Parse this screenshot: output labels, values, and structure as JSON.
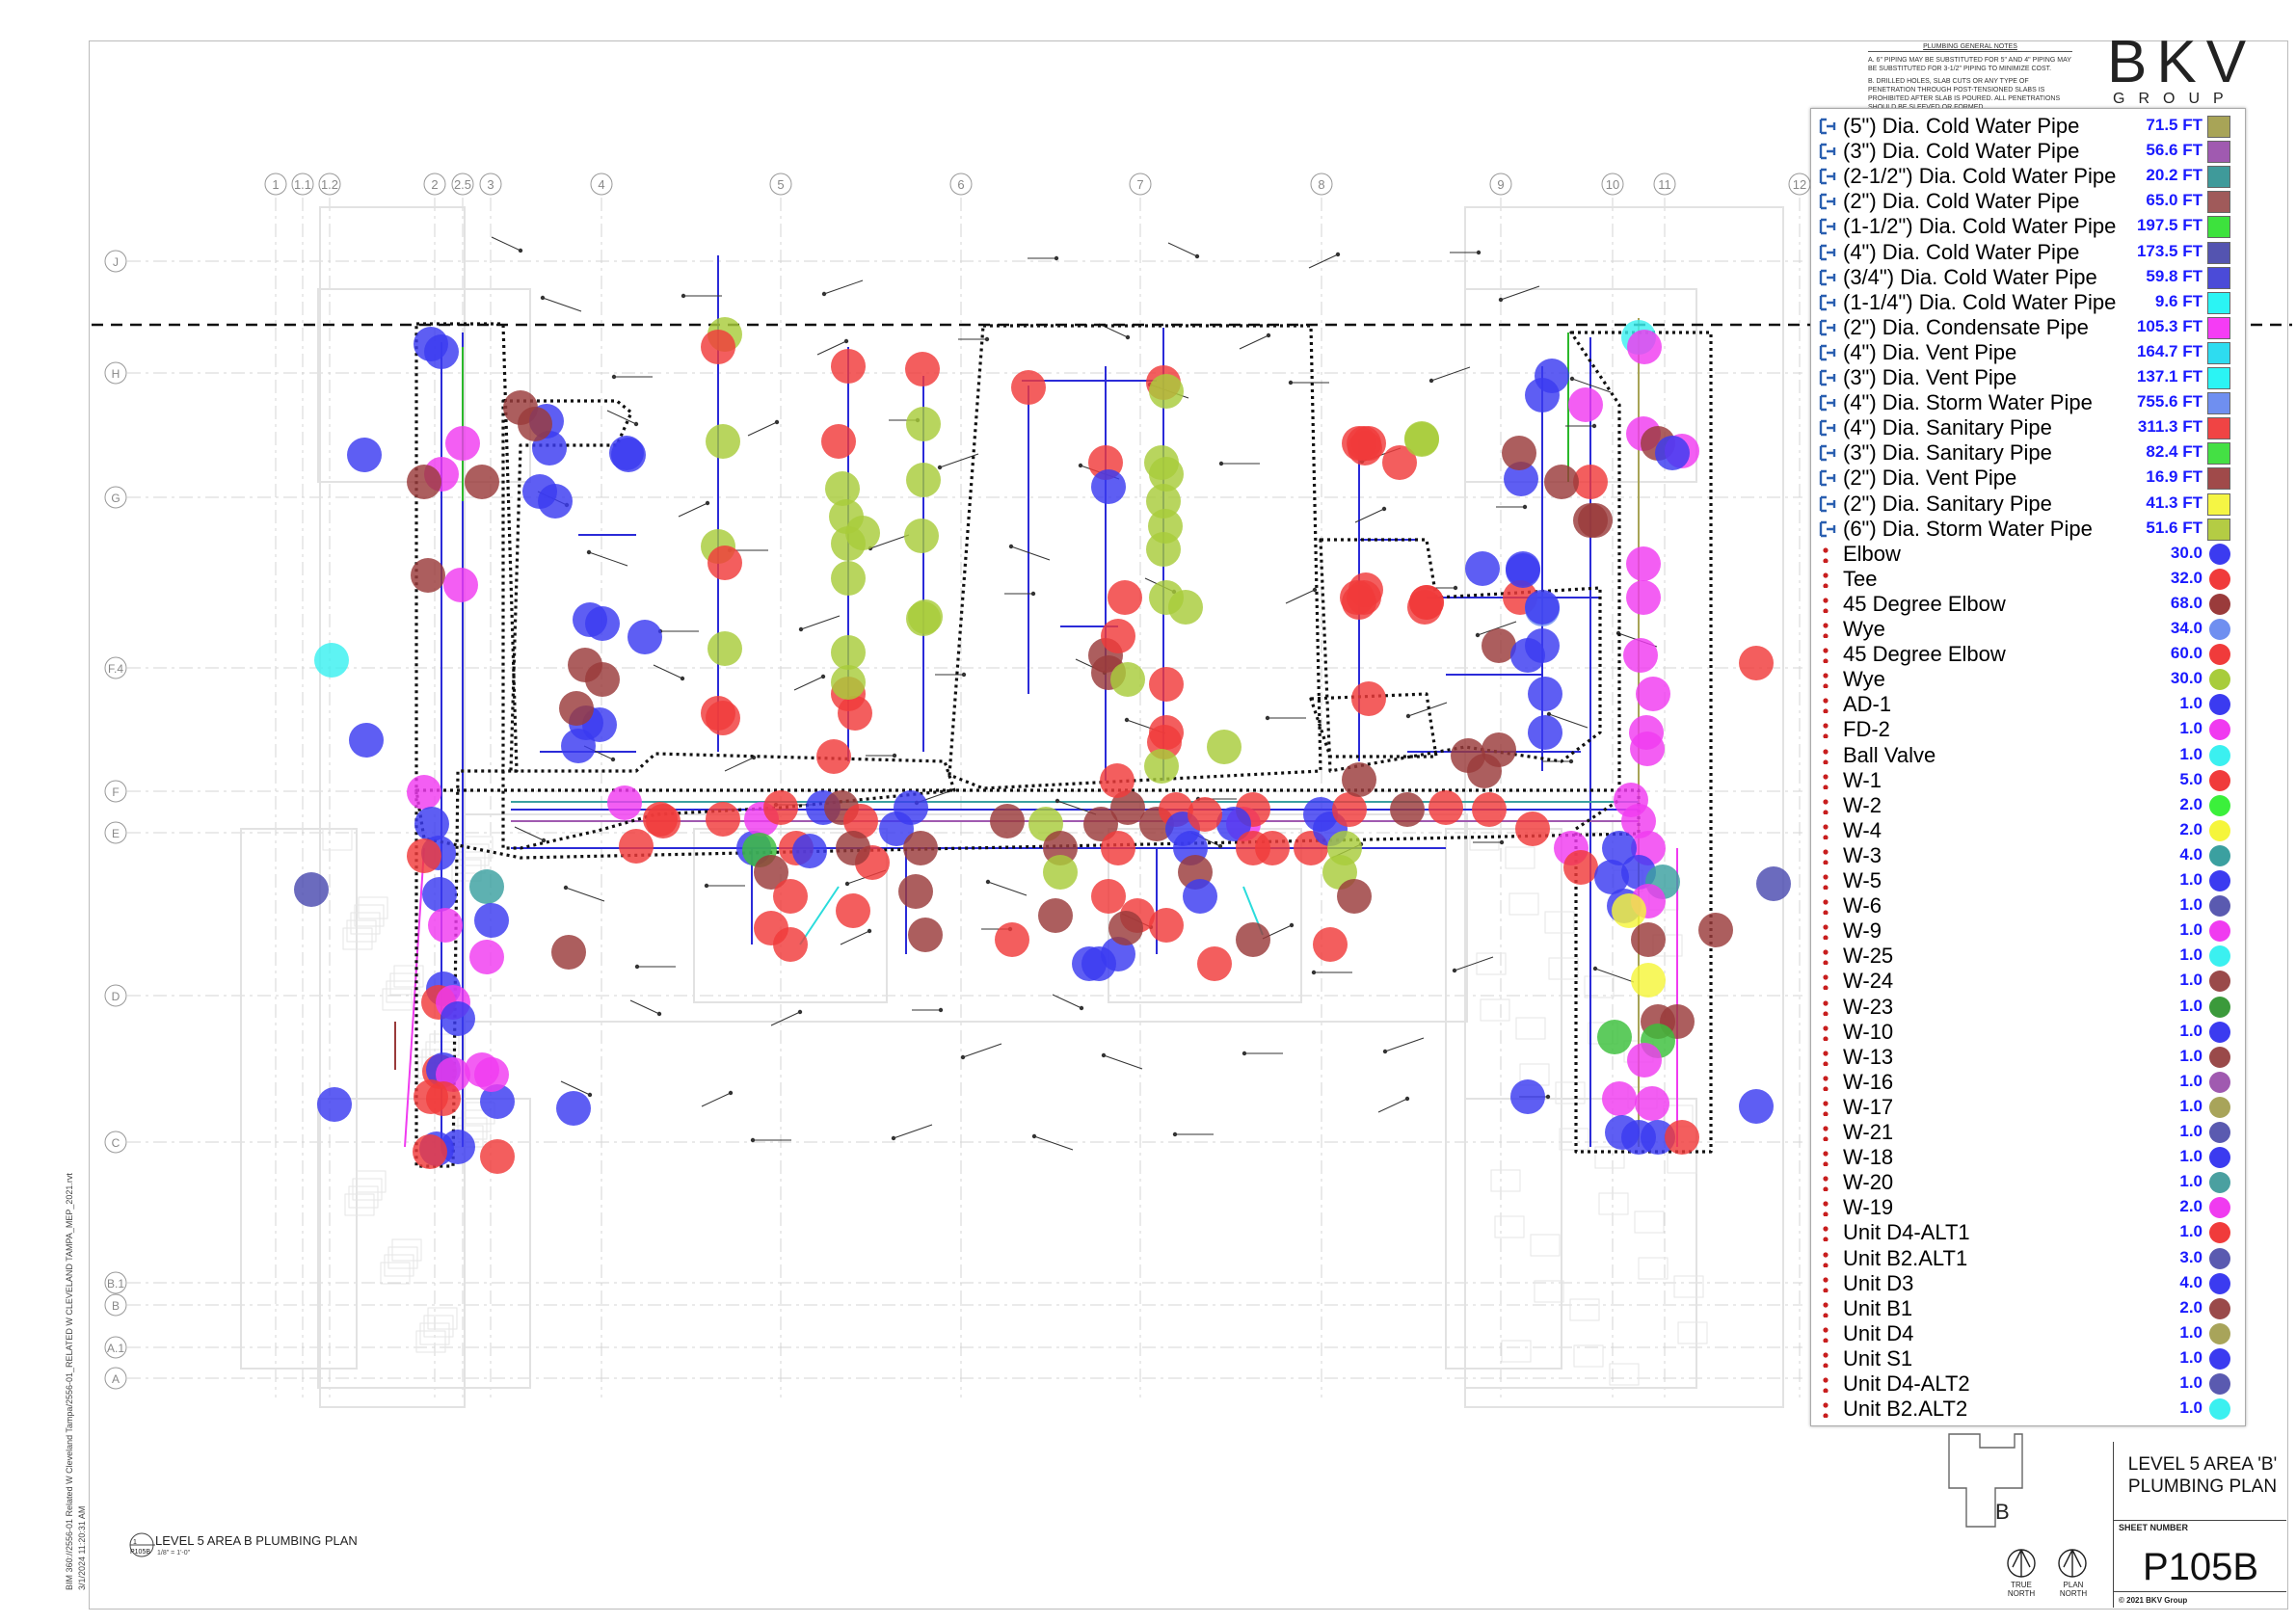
{
  "sheet": {
    "notes_title": "PLUMBING GENERAL NOTES",
    "notes": [
      "A. 6\" PIPING MAY BE SUBSTITUTED FOR 5\" AND 4\" PIPING MAY BE SUBSTITUTED FOR 3-1/2\" PIPING TO MINIMIZE COST.",
      "B. DRILLED HOLES, SLAB CUTS OR ANY TYPE OF PENETRATION THROUGH POST-TENSIONED SLABS IS PROHIBITED AFTER SLAB IS POURED. ALL PENETRATIONS SHOULD BE SLEEVED OR FORMED."
    ],
    "logo_main": "BKV",
    "logo_sub": "GROUP",
    "view_number": "1",
    "view_sheet": "P105B",
    "view_title": "LEVEL 5 AREA B PLUMBING PLAN",
    "view_scale": "1/8\" = 1'-0\"",
    "file_path": "BIM 360://2556-01 Related W Cleveland Tampa/2556-01_RELATED W CLEVELAND TAMPA_MEP_2021.rvt",
    "timestamp": "3/1/2024 11:20:31 AM",
    "title_line1": "LEVEL 5 AREA 'B'",
    "title_line2": "PLUMBING PLAN",
    "sheet_number_label": "SHEET NUMBER",
    "sheet_number": "P105B",
    "copyright": "© 2021 BKV Group",
    "key_plan_label": "B",
    "true_north": "TRUE NORTH",
    "plan_north": "PLAN NORTH",
    "grid_cols": [
      {
        "label": "1"
      },
      {
        "label": "1.1"
      },
      {
        "label": "1.2"
      },
      {
        "label": "2"
      },
      {
        "label": "2.5"
      },
      {
        "label": "3"
      },
      {
        "label": "4"
      },
      {
        "label": "5"
      },
      {
        "label": "6"
      },
      {
        "label": "7"
      },
      {
        "label": "8"
      },
      {
        "label": "9"
      },
      {
        "label": "10"
      },
      {
        "label": "11"
      },
      {
        "label": "12"
      }
    ],
    "grid_rows": [
      {
        "label": "J"
      },
      {
        "label": "H"
      },
      {
        "label": "G"
      },
      {
        "label": "F.4"
      },
      {
        "label": "F"
      },
      {
        "label": "E"
      },
      {
        "label": "D"
      },
      {
        "label": "C"
      },
      {
        "label": "B.1"
      },
      {
        "label": "B"
      },
      {
        "label": "A.1"
      },
      {
        "label": "A"
      }
    ]
  },
  "legend": {
    "pipes": [
      {
        "label": "(5\") Dia. Cold Water Pipe",
        "value": "71.5 FT",
        "color": "#a8a457"
      },
      {
        "label": "(3\") Dia. Cold Water Pipe",
        "value": "56.6 FT",
        "color": "#a05ab0"
      },
      {
        "label": "(2-1/2\") Dia. Cold Water Pipe",
        "value": "20.2 FT",
        "color": "#3f9a9a"
      },
      {
        "label": "(2\") Dia. Cold Water Pipe",
        "value": "65.0 FT",
        "color": "#a05a5a"
      },
      {
        "label": "(1-1/2\") Dia. Cold Water Pipe",
        "value": "197.5 FT",
        "color": "#3de23d"
      },
      {
        "label": "(4\") Dia. Cold Water Pipe",
        "value": "173.5 FT",
        "color": "#5454b0"
      },
      {
        "label": "(3/4\") Dia. Cold Water Pipe",
        "value": "59.8 FT",
        "color": "#4b4bd8"
      },
      {
        "label": "(1-1/4\") Dia. Cold Water Pipe",
        "value": "9.6 FT",
        "color": "#2bf4f4"
      },
      {
        "label": "(2\") Dia. Condensate Pipe",
        "value": "105.3 FT",
        "color": "#f53cf5"
      },
      {
        "label": "(4\") Dia. Vent Pipe",
        "value": "164.7 FT",
        "color": "#2edcf0"
      },
      {
        "label": "(3\") Dia. Vent Pipe",
        "value": "137.1 FT",
        "color": "#2bf4f4"
      },
      {
        "label": "(4\") Dia. Storm Water Pipe",
        "value": "755.6 FT",
        "color": "#6f8ff0"
      },
      {
        "label": "(4\") Dia. Sanitary Pipe",
        "value": "311.3 FT",
        "color": "#f04444"
      },
      {
        "label": "(3\") Dia. Sanitary Pipe",
        "value": "82.4 FT",
        "color": "#44e044"
      },
      {
        "label": "(2\") Dia. Vent Pipe",
        "value": "16.9 FT",
        "color": "#a04a4a"
      },
      {
        "label": "(2\") Dia. Sanitary Pipe",
        "value": "41.3 FT",
        "color": "#f5f544"
      },
      {
        "label": "(6\") Dia. Storm Water Pipe",
        "value": "51.6 FT",
        "color": "#b4cc44"
      }
    ],
    "fittings": [
      {
        "label": "Elbow",
        "value": "30.0",
        "color": "#3b3bf0"
      },
      {
        "label": "Tee",
        "value": "32.0",
        "color": "#f03b3b"
      },
      {
        "label": "45 Degree Elbow",
        "value": "68.0",
        "color": "#9a3b3b"
      },
      {
        "label": "Wye",
        "value": "34.0",
        "color": "#6f8ff0"
      },
      {
        "label": "45 Degree Elbow",
        "value": "60.0",
        "color": "#f03b3b"
      },
      {
        "label": "Wye",
        "value": "30.0",
        "color": "#a8cc3b"
      },
      {
        "label": "AD-1",
        "value": "1.0",
        "color": "#3b3bf0"
      },
      {
        "label": "FD-2",
        "value": "1.0",
        "color": "#f03bf0"
      },
      {
        "label": "Ball Valve",
        "value": "1.0",
        "color": "#3bf0f0"
      },
      {
        "label": "W-1",
        "value": "5.0",
        "color": "#f03b3b"
      },
      {
        "label": "W-2",
        "value": "2.0",
        "color": "#3bf03b"
      },
      {
        "label": "W-4",
        "value": "2.0",
        "color": "#f5f53b"
      },
      {
        "label": "W-3",
        "value": "4.0",
        "color": "#3ba0a0"
      },
      {
        "label": "W-5",
        "value": "1.0",
        "color": "#3b3bf0"
      },
      {
        "label": "W-6",
        "value": "1.0",
        "color": "#5a5ab0"
      },
      {
        "label": "W-9",
        "value": "1.0",
        "color": "#f03bf0"
      },
      {
        "label": "W-25",
        "value": "1.0",
        "color": "#3bf0f0"
      },
      {
        "label": "W-24",
        "value": "1.0",
        "color": "#9a4a4a"
      },
      {
        "label": "W-23",
        "value": "1.0",
        "color": "#3b9a3b"
      },
      {
        "label": "W-10",
        "value": "1.0",
        "color": "#3b3bf0"
      },
      {
        "label": "W-13",
        "value": "1.0",
        "color": "#9a4a4a"
      },
      {
        "label": "W-16",
        "value": "1.0",
        "color": "#a05ab0"
      },
      {
        "label": "W-17",
        "value": "1.0",
        "color": "#a8a45a"
      },
      {
        "label": "W-21",
        "value": "1.0",
        "color": "#5a5ab0"
      },
      {
        "label": "W-18",
        "value": "1.0",
        "color": "#3b3bf0"
      },
      {
        "label": "W-20",
        "value": "1.0",
        "color": "#4aa0a0"
      },
      {
        "label": "W-19",
        "value": "2.0",
        "color": "#f03bf0"
      },
      {
        "label": "Unit D4-ALT1",
        "value": "1.0",
        "color": "#f03b3b"
      },
      {
        "label": "Unit B2.ALT1",
        "value": "3.0",
        "color": "#5a5ab0"
      },
      {
        "label": "Unit D3",
        "value": "4.0",
        "color": "#3b3bf0"
      },
      {
        "label": "Unit B1",
        "value": "2.0",
        "color": "#9a4a4a"
      },
      {
        "label": "Unit D4",
        "value": "1.0",
        "color": "#a8a45a"
      },
      {
        "label": "Unit S1",
        "value": "1.0",
        "color": "#3b3bf0"
      },
      {
        "label": "Unit D4-ALT2",
        "value": "1.0",
        "color": "#5a5ab0"
      },
      {
        "label": "Unit B2.ALT2",
        "value": "1.0",
        "color": "#3bf0f0"
      }
    ]
  }
}
